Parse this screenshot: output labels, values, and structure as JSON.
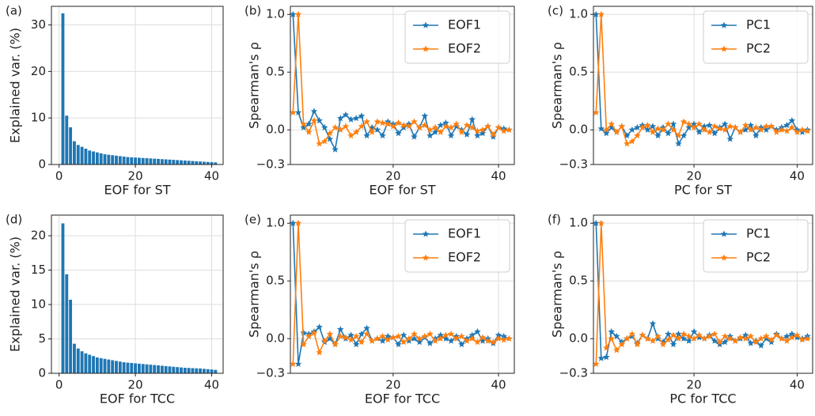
{
  "chart_data": [
    {
      "type": "bar",
      "label": "(a)",
      "xlabel": "EOF for ST",
      "ylabel": "Explained var. (%)",
      "color": "#1f77b4",
      "grid": true,
      "x": [
        1,
        2,
        3,
        4,
        5,
        6,
        7,
        8,
        9,
        10,
        11,
        12,
        13,
        14,
        15,
        16,
        17,
        18,
        19,
        20,
        21,
        22,
        23,
        24,
        25,
        26,
        27,
        28,
        29,
        30,
        31,
        32,
        33,
        34,
        35,
        36,
        37,
        38,
        39,
        40,
        41
      ],
      "values": [
        32.5,
        10.5,
        8,
        5,
        4.2,
        3.8,
        3.4,
        3.0,
        2.8,
        2.6,
        2.4,
        2.2,
        2.1,
        2.0,
        1.9,
        1.8,
        1.7,
        1.6,
        1.55,
        1.5,
        1.45,
        1.4,
        1.35,
        1.3,
        1.25,
        1.2,
        1.15,
        1.1,
        1.05,
        1.0,
        0.95,
        0.9,
        0.85,
        0.8,
        0.75,
        0.7,
        0.65,
        0.6,
        0.55,
        0.5,
        0.45
      ],
      "xlim": [
        -2,
        43
      ],
      "xticks": [
        0,
        20,
        40
      ],
      "ylim": [
        0,
        34
      ],
      "yticks": [
        0,
        10,
        20,
        30
      ]
    },
    {
      "type": "line",
      "label": "(b)",
      "xlabel": "EOF for ST",
      "ylabel": "Spearman's ρ",
      "grid": true,
      "legend": "upper right",
      "x": [
        1,
        2,
        3,
        4,
        5,
        6,
        7,
        8,
        9,
        10,
        11,
        12,
        13,
        14,
        15,
        16,
        17,
        18,
        19,
        20,
        21,
        22,
        23,
        24,
        25,
        26,
        27,
        28,
        29,
        30,
        31,
        32,
        33,
        34,
        35,
        36,
        37,
        38,
        39,
        40,
        41,
        42
      ],
      "series": [
        {
          "name": "EOF1",
          "color": "#1f77b4",
          "values": [
            1.0,
            0.15,
            0.02,
            0.05,
            0.16,
            0.08,
            0.02,
            -0.08,
            -0.17,
            0.1,
            0.13,
            0.09,
            0.1,
            0.12,
            -0.05,
            0.02,
            0.0,
            -0.05,
            0.07,
            0.05,
            -0.03,
            0.02,
            0.05,
            -0.06,
            0.02,
            0.12,
            -0.05,
            -0.02,
            0.04,
            0.06,
            -0.05,
            0.03,
            0.0,
            -0.04,
            0.09,
            -0.05,
            -0.03,
            0.03,
            -0.06,
            0.02,
            0.01,
            0.0
          ]
        },
        {
          "name": "EOF2",
          "color": "#ff7f0e",
          "values": [
            0.15,
            1.0,
            0.05,
            -0.02,
            0.08,
            -0.12,
            -0.1,
            -0.03,
            0.02,
            0.0,
            0.03,
            -0.05,
            -0.02,
            0.03,
            0.07,
            -0.02,
            0.07,
            0.06,
            0.05,
            0.03,
            0.06,
            0.04,
            0.03,
            0.07,
            0.02,
            0.04,
            0.0,
            0.02,
            -0.02,
            0.03,
            0.02,
            0.05,
            -0.02,
            0.04,
            0.02,
            -0.01,
            0.0,
            0.03,
            -0.04,
            0.02,
            -0.01,
            0.0
          ]
        }
      ],
      "xlim": [
        0.5,
        43
      ],
      "xticks": [
        20,
        40
      ],
      "ylim": [
        -0.3,
        1.07
      ],
      "yticks": [
        {
          "value": -0.3,
          "label": "−0.3"
        },
        {
          "value": 0,
          "label": "0.0"
        },
        0.5,
        {
          "value": 1,
          "label": "1.0"
        }
      ]
    },
    {
      "type": "line",
      "label": "(c)",
      "xlabel": "PC for ST",
      "ylabel": "Spearman's ρ",
      "grid": true,
      "legend": "upper right",
      "x": [
        1,
        2,
        3,
        4,
        5,
        6,
        7,
        8,
        9,
        10,
        11,
        12,
        13,
        14,
        15,
        16,
        17,
        18,
        19,
        20,
        21,
        22,
        23,
        24,
        25,
        26,
        27,
        28,
        29,
        30,
        31,
        32,
        33,
        34,
        35,
        36,
        37,
        38,
        39,
        40,
        41,
        42
      ],
      "series": [
        {
          "name": "PC1",
          "color": "#1f77b4",
          "values": [
            1.0,
            0.01,
            -0.03,
            0.02,
            -0.02,
            0.03,
            -0.05,
            0.0,
            0.02,
            0.04,
            0.0,
            0.03,
            -0.05,
            0.02,
            -0.03,
            0.05,
            -0.12,
            -0.05,
            0.02,
            0.05,
            -0.02,
            0.03,
            0.04,
            -0.03,
            0.02,
            0.05,
            -0.08,
            0.02,
            -0.02,
            0.0,
            0.04,
            -0.05,
            0.02,
            0.0,
            0.03,
            0.0,
            0.02,
            0.04,
            0.08,
            0.0,
            -0.02,
            0.0
          ]
        },
        {
          "name": "PC2",
          "color": "#ff7f0e",
          "values": [
            0.15,
            1.0,
            0.0,
            0.05,
            -0.02,
            0.03,
            -0.12,
            -0.1,
            -0.05,
            0.02,
            0.04,
            -0.02,
            0.01,
            0.0,
            0.05,
            0.0,
            -0.05,
            0.07,
            0.05,
            0.02,
            0.05,
            0.0,
            -0.02,
            0.03,
            0.01,
            0.0,
            0.03,
            0.02,
            -0.02,
            0.04,
            0.0,
            0.02,
            0.0,
            0.03,
            0.03,
            -0.02,
            0.0,
            -0.01,
            0.02,
            -0.02,
            0.0,
            -0.01
          ]
        }
      ],
      "xlim": [
        0.5,
        43
      ],
      "xticks": [
        20,
        40
      ],
      "ylim": [
        -0.3,
        1.07
      ],
      "yticks": [
        {
          "value": -0.3,
          "label": "−0.3"
        },
        {
          "value": 0,
          "label": "0.0"
        },
        0.5,
        {
          "value": 1,
          "label": "1.0"
        }
      ]
    },
    {
      "type": "bar",
      "label": "(d)",
      "xlabel": "EOF for TCC",
      "ylabel": "Explained var. (%)",
      "color": "#1f77b4",
      "grid": true,
      "x": [
        1,
        2,
        3,
        4,
        5,
        6,
        7,
        8,
        9,
        10,
        11,
        12,
        13,
        14,
        15,
        16,
        17,
        18,
        19,
        20,
        21,
        22,
        23,
        24,
        25,
        26,
        27,
        28,
        29,
        30,
        31,
        32,
        33,
        34,
        35,
        36,
        37,
        38,
        39,
        40,
        41
      ],
      "values": [
        21.8,
        14.4,
        10.7,
        4.3,
        3.6,
        3.2,
        2.9,
        2.7,
        2.5,
        2.3,
        2.2,
        2.1,
        2.0,
        1.9,
        1.8,
        1.7,
        1.6,
        1.55,
        1.5,
        1.45,
        1.4,
        1.35,
        1.3,
        1.25,
        1.2,
        1.15,
        1.1,
        1.05,
        1.0,
        0.95,
        0.9,
        0.85,
        0.8,
        0.78,
        0.75,
        0.72,
        0.7,
        0.65,
        0.6,
        0.55,
        0.5
      ],
      "xlim": [
        -2,
        43
      ],
      "xticks": [
        0,
        20,
        40
      ],
      "ylim": [
        0,
        23
      ],
      "yticks": [
        0,
        5,
        10,
        15,
        20
      ]
    },
    {
      "type": "line",
      "label": "(e)",
      "xlabel": "EOF for TCC",
      "ylabel": "Spearman's ρ",
      "grid": true,
      "legend": "upper right",
      "x": [
        1,
        2,
        3,
        4,
        5,
        6,
        7,
        8,
        9,
        10,
        11,
        12,
        13,
        14,
        15,
        16,
        17,
        18,
        19,
        20,
        21,
        22,
        23,
        24,
        25,
        26,
        27,
        28,
        29,
        30,
        31,
        32,
        33,
        34,
        35,
        36,
        37,
        38,
        39,
        40,
        41,
        42
      ],
      "series": [
        {
          "name": "EOF1",
          "color": "#1f77b4",
          "values": [
            1.0,
            -0.22,
            0.05,
            0.04,
            0.06,
            0.1,
            -0.03,
            0.0,
            -0.05,
            0.08,
            0.0,
            0.03,
            -0.05,
            0.04,
            0.09,
            -0.02,
            0.0,
            -0.02,
            0.02,
            0.01,
            -0.05,
            0.03,
            -0.02,
            0.0,
            -0.03,
            0.01,
            -0.04,
            0.0,
            0.03,
            0.0,
            -0.02,
            0.02,
            -0.05,
            0.0,
            0.03,
            0.06,
            -0.02,
            0.0,
            -0.04,
            0.03,
            0.02,
            0.0
          ]
        },
        {
          "name": "EOF2",
          "color": "#ff7f0e",
          "values": [
            -0.22,
            1.0,
            -0.05,
            0.02,
            0.05,
            -0.12,
            -0.02,
            0.04,
            -0.05,
            0.02,
            0.01,
            -0.01,
            0.02,
            -0.03,
            0.04,
            -0.02,
            0.0,
            0.02,
            -0.01,
            0.01,
            0.02,
            -0.03,
            0.0,
            0.04,
            0.0,
            0.02,
            0.04,
            -0.02,
            0.0,
            0.03,
            0.04,
            0.0,
            0.02,
            -0.02,
            0.0,
            -0.03,
            0.01,
            -0.02,
            -0.03,
            0.0,
            -0.01,
            0.0
          ]
        }
      ],
      "xlim": [
        0.5,
        43
      ],
      "xticks": [
        20,
        40
      ],
      "ylim": [
        -0.3,
        1.07
      ],
      "yticks": [
        {
          "value": -0.3,
          "label": "−0.3"
        },
        {
          "value": 0,
          "label": "0.0"
        },
        0.5,
        {
          "value": 1,
          "label": "1.0"
        }
      ]
    },
    {
      "type": "line",
      "label": "(f)",
      "xlabel": "PC for TCC",
      "ylabel": "Spearman's ρ",
      "grid": true,
      "legend": "upper right",
      "x": [
        1,
        2,
        3,
        4,
        5,
        6,
        7,
        8,
        9,
        10,
        11,
        12,
        13,
        14,
        15,
        16,
        17,
        18,
        19,
        20,
        21,
        22,
        23,
        24,
        25,
        26,
        27,
        28,
        29,
        30,
        31,
        32,
        33,
        34,
        35,
        36,
        37,
        38,
        39,
        40,
        41,
        42
      ],
      "series": [
        {
          "name": "PC1",
          "color": "#1f77b4",
          "values": [
            1.0,
            -0.17,
            -0.16,
            0.06,
            0.02,
            -0.03,
            0.0,
            0.02,
            -0.04,
            0.03,
            0.0,
            0.13,
            0.0,
            -0.03,
            0.04,
            -0.05,
            0.04,
            0.0,
            -0.02,
            0.06,
            0.01,
            0.0,
            0.03,
            -0.02,
            -0.05,
            -0.03,
            0.02,
            -0.02,
            0.0,
            0.03,
            -0.04,
            -0.02,
            -0.06,
            0.0,
            -0.03,
            0.04,
            0.0,
            0.02,
            0.04,
            0.01,
            0.0,
            0.02
          ]
        },
        {
          "name": "PC2",
          "color": "#ff7f0e",
          "values": [
            -0.22,
            1.0,
            -0.08,
            0.0,
            -0.1,
            -0.05,
            0.0,
            0.04,
            -0.05,
            0.03,
            0.0,
            -0.02,
            0.02,
            -0.05,
            -0.01,
            0.03,
            0.0,
            0.04,
            0.02,
            0.0,
            0.03,
            0.0,
            0.02,
            0.04,
            -0.03,
            0.02,
            0.0,
            -0.02,
            0.01,
            0.0,
            0.02,
            -0.03,
            0.0,
            0.02,
            -0.01,
            0.03,
            0.0,
            -0.02,
            0.01,
            0.03,
            -0.01,
            0.0
          ]
        }
      ],
      "xlim": [
        0.5,
        43
      ],
      "xticks": [
        20,
        40
      ],
      "ylim": [
        -0.3,
        1.07
      ],
      "yticks": [
        {
          "value": -0.3,
          "label": "−0.3"
        },
        {
          "value": 0,
          "label": "0.0"
        },
        0.5,
        {
          "value": 1,
          "label": "1.0"
        }
      ]
    }
  ]
}
